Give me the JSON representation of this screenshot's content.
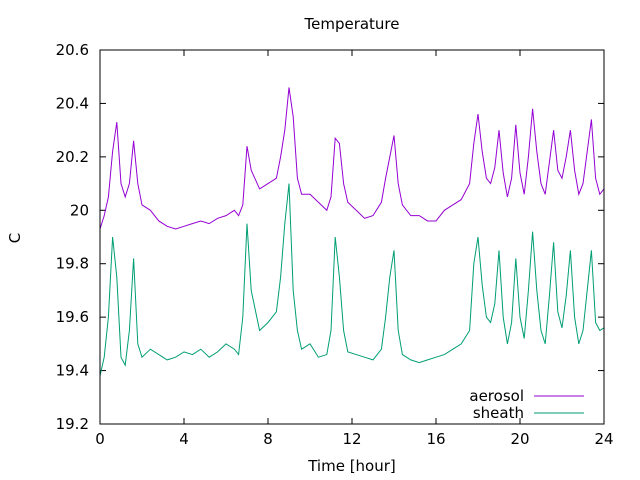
{
  "chart_data": {
    "type": "line",
    "title": "Temperature",
    "xlabel": "Time [hour]",
    "ylabel": "C",
    "xlim": [
      0,
      24
    ],
    "ylim": [
      19.2,
      20.6
    ],
    "xticks": [
      0,
      4,
      8,
      12,
      16,
      20,
      24
    ],
    "xtick_labels": [
      "0",
      "4",
      "8",
      "12",
      "16",
      "20",
      "24"
    ],
    "yticks": [
      19.2,
      19.4,
      19.6,
      19.8,
      20.0,
      20.2,
      20.4,
      20.6
    ],
    "ytick_labels": [
      "19.2",
      "19.4",
      "19.6",
      "19.8",
      "20",
      "20.2",
      "20.4",
      "20.6"
    ],
    "grid": false,
    "legend_position": "bottom-right",
    "series": [
      {
        "name": "aerosol",
        "color": "#9400d3",
        "x": [
          0,
          0.2,
          0.4,
          0.6,
          0.8,
          1.0,
          1.2,
          1.4,
          1.6,
          1.8,
          2.0,
          2.4,
          2.8,
          3.2,
          3.6,
          4.0,
          4.4,
          4.8,
          5.2,
          5.6,
          6.0,
          6.4,
          6.6,
          6.8,
          7.0,
          7.2,
          7.6,
          8.0,
          8.4,
          8.6,
          8.8,
          9.0,
          9.2,
          9.4,
          9.6,
          10.0,
          10.4,
          10.8,
          11.0,
          11.2,
          11.4,
          11.6,
          11.8,
          12.2,
          12.6,
          13.0,
          13.4,
          13.6,
          13.8,
          14.0,
          14.2,
          14.4,
          14.8,
          15.2,
          15.6,
          16.0,
          16.4,
          16.8,
          17.2,
          17.6,
          17.8,
          18.0,
          18.2,
          18.4,
          18.6,
          18.8,
          19.0,
          19.2,
          19.4,
          19.6,
          19.8,
          20.0,
          20.2,
          20.4,
          20.6,
          20.8,
          21.0,
          21.2,
          21.4,
          21.6,
          21.8,
          22.0,
          22.2,
          22.4,
          22.6,
          22.8,
          23.0,
          23.2,
          23.4,
          23.6,
          23.8,
          24.0
        ],
        "y": [
          19.93,
          19.98,
          20.05,
          20.22,
          20.33,
          20.1,
          20.05,
          20.1,
          20.26,
          20.1,
          20.02,
          20.0,
          19.96,
          19.94,
          19.93,
          19.94,
          19.95,
          19.96,
          19.95,
          19.97,
          19.98,
          20.0,
          19.98,
          20.02,
          20.24,
          20.15,
          20.08,
          20.1,
          20.12,
          20.2,
          20.3,
          20.46,
          20.35,
          20.12,
          20.06,
          20.06,
          20.03,
          20.0,
          20.05,
          20.27,
          20.25,
          20.1,
          20.03,
          20.0,
          19.97,
          19.98,
          20.03,
          20.12,
          20.2,
          20.28,
          20.1,
          20.02,
          19.98,
          19.98,
          19.96,
          19.96,
          20.0,
          20.02,
          20.04,
          20.1,
          20.25,
          20.36,
          20.22,
          20.12,
          20.1,
          20.16,
          20.3,
          20.14,
          20.05,
          20.12,
          20.32,
          20.14,
          20.06,
          20.2,
          20.38,
          20.22,
          20.1,
          20.06,
          20.18,
          20.3,
          20.15,
          20.12,
          20.2,
          20.3,
          20.15,
          20.06,
          20.1,
          20.22,
          20.34,
          20.12,
          20.06,
          20.08
        ]
      },
      {
        "name": "sheath",
        "color": "#009e73",
        "x": [
          0,
          0.2,
          0.4,
          0.6,
          0.8,
          1.0,
          1.2,
          1.4,
          1.6,
          1.8,
          2.0,
          2.4,
          2.8,
          3.2,
          3.6,
          4.0,
          4.4,
          4.8,
          5.2,
          5.6,
          6.0,
          6.4,
          6.6,
          6.8,
          7.0,
          7.2,
          7.6,
          8.0,
          8.4,
          8.6,
          8.8,
          9.0,
          9.2,
          9.4,
          9.6,
          10.0,
          10.4,
          10.8,
          11.0,
          11.2,
          11.4,
          11.6,
          11.8,
          12.2,
          12.6,
          13.0,
          13.4,
          13.6,
          13.8,
          14.0,
          14.2,
          14.4,
          14.8,
          15.2,
          15.6,
          16.0,
          16.4,
          16.8,
          17.2,
          17.6,
          17.8,
          18.0,
          18.2,
          18.4,
          18.6,
          18.8,
          19.0,
          19.2,
          19.4,
          19.6,
          19.8,
          20.0,
          20.2,
          20.4,
          20.6,
          20.8,
          21.0,
          21.2,
          21.4,
          21.6,
          21.8,
          22.0,
          22.2,
          22.4,
          22.6,
          22.8,
          23.0,
          23.2,
          23.4,
          23.6,
          23.8,
          24.0
        ],
        "y": [
          19.38,
          19.45,
          19.6,
          19.9,
          19.75,
          19.45,
          19.42,
          19.55,
          19.82,
          19.5,
          19.45,
          19.48,
          19.46,
          19.44,
          19.45,
          19.47,
          19.46,
          19.48,
          19.45,
          19.47,
          19.5,
          19.48,
          19.46,
          19.6,
          19.95,
          19.7,
          19.55,
          19.58,
          19.62,
          19.75,
          19.95,
          20.1,
          19.7,
          19.55,
          19.48,
          19.5,
          19.45,
          19.46,
          19.55,
          19.9,
          19.75,
          19.55,
          19.47,
          19.46,
          19.45,
          19.44,
          19.48,
          19.6,
          19.75,
          19.85,
          19.55,
          19.46,
          19.44,
          19.43,
          19.44,
          19.45,
          19.46,
          19.48,
          19.5,
          19.55,
          19.8,
          19.9,
          19.72,
          19.6,
          19.58,
          19.65,
          19.85,
          19.6,
          19.5,
          19.58,
          19.82,
          19.6,
          19.52,
          19.7,
          19.92,
          19.7,
          19.55,
          19.5,
          19.68,
          19.88,
          19.62,
          19.56,
          19.68,
          19.85,
          19.6,
          19.5,
          19.55,
          19.7,
          19.85,
          19.58,
          19.55,
          19.56
        ]
      }
    ]
  }
}
